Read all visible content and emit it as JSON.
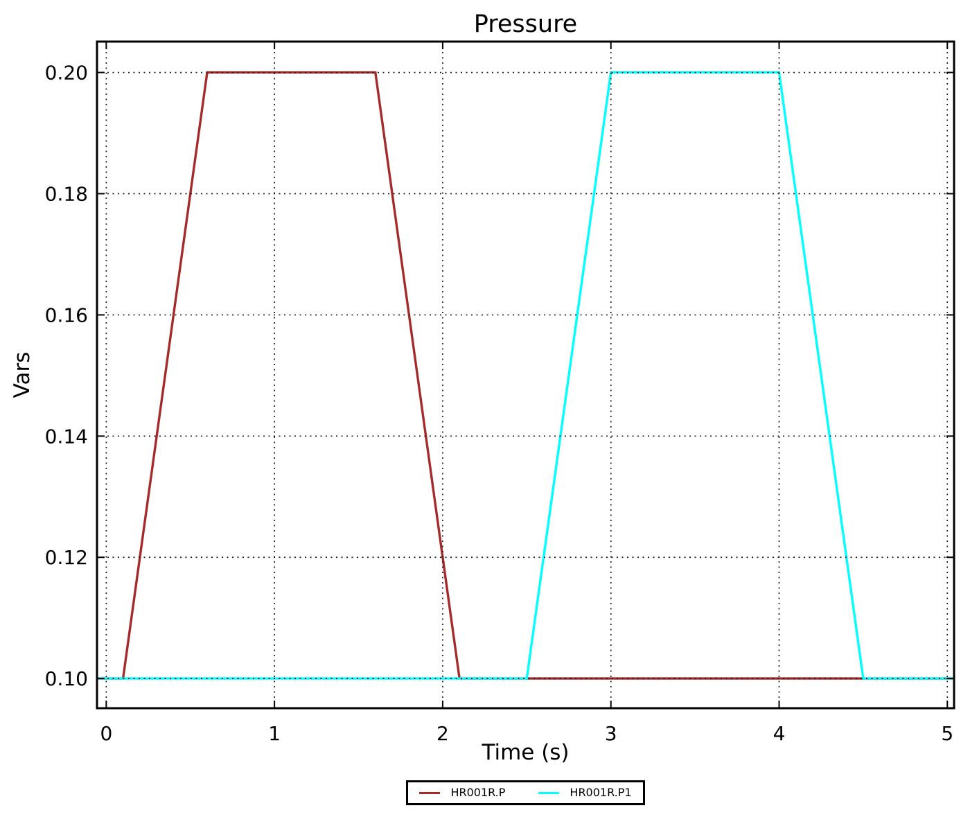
{
  "chart_data": {
    "type": "line",
    "title": "Pressure",
    "xlabel": "Time (s)",
    "ylabel": "Vars",
    "xlim": [
      -0.055,
      5.04
    ],
    "ylim": [
      0.0951,
      0.2051
    ],
    "xticks": [
      0,
      1,
      2,
      3,
      4,
      5
    ],
    "xtick_labels": [
      "0",
      "1",
      "2",
      "3",
      "4",
      "5"
    ],
    "yticks": [
      0.1,
      0.12,
      0.14,
      0.16,
      0.18,
      0.2
    ],
    "ytick_labels": [
      "0.10",
      "0.12",
      "0.14",
      "0.16",
      "0.18",
      "0.20"
    ],
    "grid": true,
    "grid_style": "dotted",
    "grid_above_lines": true,
    "legend_position": "bottom-center",
    "series": [
      {
        "name": "HR001R.P",
        "color": "#a52a2a",
        "points": [
          [
            0,
            0.1
          ],
          [
            0.1,
            0.1
          ],
          [
            0.6,
            0.2
          ],
          [
            1.6,
            0.2
          ],
          [
            2.1,
            0.1
          ],
          [
            5,
            0.1
          ]
        ]
      },
      {
        "name": "HR001R.P1",
        "color": "#00ffff",
        "points": [
          [
            0,
            0.1
          ],
          [
            2.5,
            0.1
          ],
          [
            3.0,
            0.2
          ],
          [
            4.0,
            0.2
          ],
          [
            4.5,
            0.1
          ],
          [
            5,
            0.1
          ]
        ]
      }
    ]
  },
  "colors": {
    "background": "#ffffff",
    "frame": "#000000",
    "grid": "#1a1a1a",
    "text": "#000000"
  }
}
